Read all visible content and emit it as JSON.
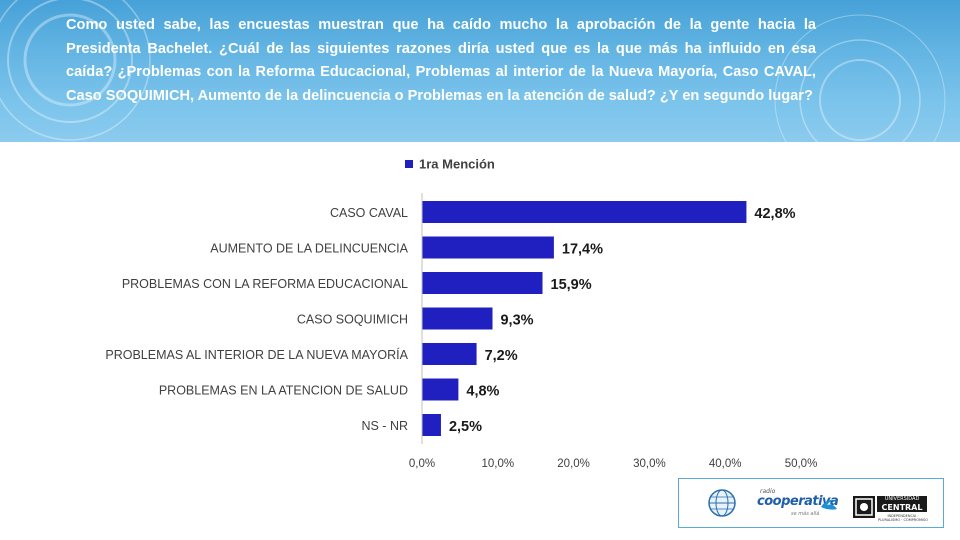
{
  "question": "Como usted sabe, las encuestas muestran que ha caído mucho la aprobación de la gente hacia la Presidenta Bachelet. ¿Cuál de las siguientes razones diría usted que es la que más ha influido en esa caída? ¿Problemas con la Reforma Educacional, Problemas al interior de la Nueva Mayoría, Caso CAVAL, Caso SOQUIMICH, Aumento de la delincuencia o Problemas en la atención de salud? ¿Y en segundo lugar?",
  "colors": {
    "bar": "#2020c0",
    "banner": "#4fa8de",
    "axis_text": "#404040"
  },
  "chart_data": {
    "type": "bar",
    "orientation": "horizontal",
    "categories": [
      "CASO CAVAL",
      "AUMENTO DE LA DELINCUENCIA",
      "PROBLEMAS CON LA REFORMA EDUCACIONAL",
      "CASO SOQUIMICH",
      "PROBLEMAS AL INTERIOR DE LA NUEVA MAYORÍA",
      "PROBLEMAS EN LA ATENCION DE SALUD",
      "NS - NR"
    ],
    "series": [
      {
        "name": "1ra Mención",
        "values": [
          42.8,
          17.4,
          15.9,
          9.3,
          7.2,
          4.8,
          2.5
        ],
        "labels": [
          "42,8%",
          "17,4%",
          "15,9%",
          "9,3%",
          "7,2%",
          "4,8%",
          "2,5%"
        ]
      }
    ],
    "xlim": [
      0,
      50
    ],
    "xticks": [
      0,
      10,
      20,
      30,
      40,
      50
    ],
    "xtick_labels": [
      "0,0%",
      "10,0%",
      "20,0%",
      "30,0%",
      "40,0%",
      "50,0%"
    ],
    "grid": false,
    "legend_position": "top"
  },
  "logos": {
    "radio_small": "radio",
    "cooperativa": "cooperativa",
    "cooperativa_sub": "se más allá",
    "university_line1": "UNIVERSIDAD",
    "university_line2": "CENTRAL",
    "university_tag": "INDEPENDENCIA · PLURALISMO · COMPROMISO"
  }
}
